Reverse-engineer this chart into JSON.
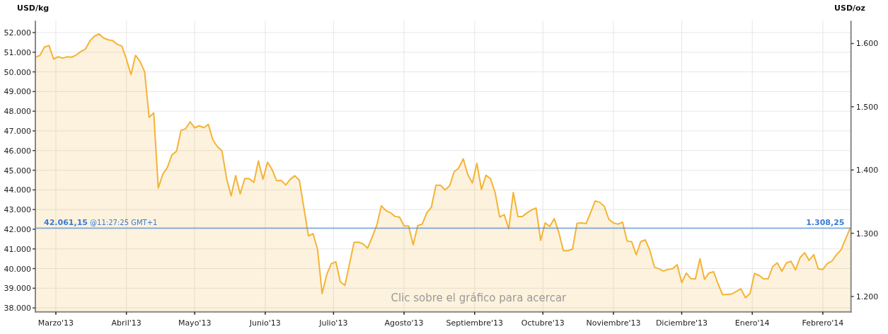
{
  "chart_data": {
    "type": "area",
    "ylabel": "USD/kg",
    "y2label": "USD/oz",
    "x": [
      "2013-02-20",
      "2013-02-22",
      "2013-02-24",
      "2013-02-26",
      "2013-02-28",
      "2013-03-02",
      "2013-03-04",
      "2013-03-06",
      "2013-03-08",
      "2013-03-10",
      "2013-03-12",
      "2013-03-14",
      "2013-03-16",
      "2013-03-18",
      "2013-03-20",
      "2013-03-22",
      "2013-03-24",
      "2013-03-26",
      "2013-03-28",
      "2013-03-30",
      "2013-04-01",
      "2013-04-03",
      "2013-04-05",
      "2013-04-07",
      "2013-04-09",
      "2013-04-11",
      "2013-04-13",
      "2013-04-15",
      "2013-04-17",
      "2013-04-19",
      "2013-04-21",
      "2013-04-23",
      "2013-04-25",
      "2013-04-27",
      "2013-04-29",
      "2013-05-01",
      "2013-05-03",
      "2013-05-05",
      "2013-05-07",
      "2013-05-09",
      "2013-05-11",
      "2013-05-13",
      "2013-05-15",
      "2013-05-17",
      "2013-05-19",
      "2013-05-21",
      "2013-05-23",
      "2013-05-25",
      "2013-05-27",
      "2013-05-29",
      "2013-05-31",
      "2013-06-02",
      "2013-06-04",
      "2013-06-06",
      "2013-06-08",
      "2013-06-10",
      "2013-06-12",
      "2013-06-14",
      "2013-06-16",
      "2013-06-20",
      "2013-06-22",
      "2013-06-24",
      "2013-06-26",
      "2013-06-28",
      "2013-06-30",
      "2013-07-02",
      "2013-07-04",
      "2013-07-06",
      "2013-07-08",
      "2013-07-10",
      "2013-07-12",
      "2013-07-14",
      "2013-07-16",
      "2013-07-18",
      "2013-07-20",
      "2013-07-22",
      "2013-07-24",
      "2013-07-26",
      "2013-07-28",
      "2013-07-30",
      "2013-08-01",
      "2013-08-03",
      "2013-08-05",
      "2013-08-07",
      "2013-08-09",
      "2013-08-11",
      "2013-08-13",
      "2013-08-15",
      "2013-08-17",
      "2013-08-19",
      "2013-08-21",
      "2013-08-23",
      "2013-08-25",
      "2013-08-27",
      "2013-08-29",
      "2013-08-31",
      "2013-09-02",
      "2013-09-04",
      "2013-09-06",
      "2013-09-08",
      "2013-09-10",
      "2013-09-12",
      "2013-09-14",
      "2013-09-16",
      "2013-09-18",
      "2013-09-20",
      "2013-09-22",
      "2013-09-24",
      "2013-09-26",
      "2013-09-28",
      "2013-09-30",
      "2013-10-02",
      "2013-10-04",
      "2013-10-06",
      "2013-10-08",
      "2013-10-10",
      "2013-10-12",
      "2013-10-14",
      "2013-10-16",
      "2013-10-18",
      "2013-10-20",
      "2013-10-22",
      "2013-10-24",
      "2013-10-26",
      "2013-10-28",
      "2013-10-30",
      "2013-11-01",
      "2013-11-03",
      "2013-11-05",
      "2013-11-07",
      "2013-11-09",
      "2013-11-11",
      "2013-11-13",
      "2013-11-15",
      "2013-11-17",
      "2013-11-19",
      "2013-11-21",
      "2013-11-23",
      "2013-11-25",
      "2013-11-27",
      "2013-11-29",
      "2013-12-01",
      "2013-12-03",
      "2013-12-05",
      "2013-12-07",
      "2013-12-09",
      "2013-12-11",
      "2013-12-13",
      "2013-12-15",
      "2013-12-17",
      "2013-12-19",
      "2013-12-23",
      "2013-12-27",
      "2013-12-29",
      "2013-12-31",
      "2014-01-02",
      "2014-01-04",
      "2014-01-06",
      "2014-01-08",
      "2014-01-10",
      "2014-01-12",
      "2014-01-14",
      "2014-01-16",
      "2014-01-18",
      "2014-01-20",
      "2014-01-22",
      "2014-01-24",
      "2014-01-26",
      "2014-01-28",
      "2014-01-30",
      "2014-02-01",
      "2014-02-03",
      "2014-02-05",
      "2014-02-07",
      "2014-02-09",
      "2014-02-13"
    ],
    "series": [
      {
        "color": "#f5b335",
        "values": [
          50740,
          50840,
          51260,
          51340,
          50650,
          50770,
          50700,
          50770,
          50750,
          50860,
          51040,
          51160,
          51580,
          51820,
          51930,
          51720,
          51630,
          51590,
          51400,
          51310,
          50650,
          49860,
          50840,
          50530,
          50010,
          47690,
          47920,
          44100,
          44800,
          45140,
          45780,
          45960,
          47020,
          47110,
          47460,
          47160,
          47260,
          47160,
          47330,
          46540,
          46200,
          45980,
          44590,
          43700,
          44720,
          43800,
          44580,
          44570,
          44380,
          45470,
          44540,
          45410,
          45040,
          44470,
          44480,
          44250,
          44540,
          44720,
          44490,
          41660,
          41780,
          40970,
          38730,
          39690,
          40250,
          40350,
          39330,
          39150,
          40230,
          41330,
          41340,
          41250,
          41040,
          41610,
          42200,
          43190,
          42950,
          42840,
          42650,
          42620,
          42170,
          42170,
          41210,
          42190,
          42260,
          42840,
          43130,
          44240,
          44240,
          44000,
          44200,
          44920,
          45110,
          45580,
          44780,
          44350,
          45350,
          44020,
          44750,
          44560,
          43870,
          42620,
          42740,
          42020,
          43870,
          42650,
          42650,
          42830,
          42980,
          43080,
          41430,
          42320,
          42140,
          42540,
          41840,
          40910,
          40910,
          40990,
          42300,
          42320,
          42290,
          42860,
          43440,
          43370,
          43160,
          42500,
          42320,
          42260,
          42360,
          41400,
          41370,
          40710,
          41370,
          41460,
          40920,
          40080,
          39990,
          39870,
          39960,
          39990,
          40200,
          39290,
          39770,
          39490,
          39470,
          40500,
          39450,
          39780,
          39840,
          39210,
          38670,
          38710,
          38970,
          38520,
          38730,
          39750,
          39650,
          39480,
          39480,
          40110,
          40290,
          39870,
          40290,
          40370,
          39930,
          40560,
          40800,
          40420,
          40710,
          39990,
          39960,
          40260,
          40380,
          40710,
          40950,
          42060
        ]
      }
    ],
    "xlim": [
      "2013-02-20",
      "2014-02-13T09:00"
    ],
    "xticks": [
      {
        "value": "2013-03-01",
        "label": "Marzo'13"
      },
      {
        "value": "2013-04-01",
        "label": "Abril'13"
      },
      {
        "value": "2013-05-01",
        "label": "Mayo'13"
      },
      {
        "value": "2013-06-01",
        "label": "Junio'13"
      },
      {
        "value": "2013-07-01",
        "label": "Julio'13"
      },
      {
        "value": "2013-08-01",
        "label": "Agosto'13"
      },
      {
        "value": "2013-09-01",
        "label": "Septiembre'13"
      },
      {
        "value": "2013-10-01",
        "label": "Octubre'13"
      },
      {
        "value": "2013-11-01",
        "label": "Noviembre'13"
      },
      {
        "value": "2013-12-01",
        "label": "Diciembre'13"
      },
      {
        "value": "2014-01-01",
        "label": "Enero'14"
      },
      {
        "value": "2014-02-01",
        "label": "Febrero'14"
      }
    ],
    "ylim": [
      37800,
      52600
    ],
    "yticks": [
      {
        "value": 38000,
        "label": "38.000"
      },
      {
        "value": 39000,
        "label": "39.000"
      },
      {
        "value": 40000,
        "label": "40.000"
      },
      {
        "value": 41000,
        "label": "41.000"
      },
      {
        "value": 42000,
        "label": "42.000"
      },
      {
        "value": 43000,
        "label": "43.000"
      },
      {
        "value": 44000,
        "label": "44.000"
      },
      {
        "value": 45000,
        "label": "45.000"
      },
      {
        "value": 46000,
        "label": "46.000"
      },
      {
        "value": 47000,
        "label": "47.000"
      },
      {
        "value": 48000,
        "label": "48.000"
      },
      {
        "value": 49000,
        "label": "49.000"
      },
      {
        "value": 50000,
        "label": "50.000"
      },
      {
        "value": 51000,
        "label": "51.000"
      },
      {
        "value": 52000,
        "label": "52.000"
      }
    ],
    "y2lim": [
      1175.7,
      1636
    ],
    "y2ticks": [
      {
        "value": 1200,
        "label": "1.200"
      },
      {
        "value": 1300,
        "label": "1.300"
      },
      {
        "value": 1400,
        "label": "1.400"
      },
      {
        "value": 1500,
        "label": "1.500"
      },
      {
        "value": 1600,
        "label": "1.600"
      }
    ],
    "ref_lines": [
      {
        "axis": "y",
        "value": 42061.15,
        "label": "42.061,15 @11:27:25 GMT+1",
        "color": "#3a7bd5"
      }
    ],
    "annotations": [
      "Clic sobre el gráfico para acercar",
      {
        "text": "1.308,25",
        "x": "2014-02-13",
        "y": 42061.15
      }
    ],
    "grid": true
  }
}
